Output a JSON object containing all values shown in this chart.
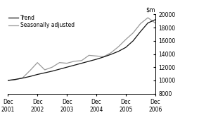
{
  "ylim": [
    8000,
    20000
  ],
  "yticks": [
    8000,
    10000,
    12000,
    14000,
    16000,
    18000,
    20000
  ],
  "xlim": [
    0,
    5
  ],
  "xtick_positions": [
    0,
    1,
    2,
    3,
    4,
    5
  ],
  "xtick_labels": [
    "Dec\n2001",
    "Dec\n2002",
    "Dec\n2003",
    "Dec\n2004",
    "Dec\n2005",
    "Dec\n2006"
  ],
  "trend_color": "#111111",
  "seasonal_color": "#999999",
  "legend_labels": [
    "Trend",
    "Seasonally adjusted"
  ],
  "background_color": "#ffffff",
  "tick_font_size": 5.5,
  "legend_fontsize": 5.5,
  "ylabel_fontsize": 6,
  "trend_x": [
    0.0,
    0.25,
    0.5,
    0.75,
    1.0,
    1.25,
    1.5,
    1.75,
    2.0,
    2.25,
    2.5,
    2.75,
    3.0,
    3.25,
    3.5,
    3.75,
    4.0,
    4.25,
    4.5,
    4.75,
    5.0
  ],
  "trend_y": [
    10000,
    10150,
    10350,
    10600,
    10900,
    11150,
    11400,
    11700,
    12000,
    12300,
    12600,
    12900,
    13200,
    13550,
    13950,
    14400,
    15000,
    16000,
    17400,
    18700,
    19200
  ],
  "seasonal_x": [
    0.0,
    0.25,
    0.5,
    0.75,
    1.0,
    1.25,
    1.5,
    1.75,
    2.0,
    2.25,
    2.5,
    2.75,
    3.0,
    3.25,
    3.5,
    3.75,
    4.0,
    4.25,
    4.5,
    4.75,
    5.0
  ],
  "seasonal_y": [
    10000,
    10100,
    10400,
    11500,
    12700,
    11600,
    12000,
    12700,
    12600,
    12900,
    13000,
    13800,
    13700,
    13600,
    14200,
    15100,
    16200,
    17200,
    18600,
    19500,
    18700
  ]
}
